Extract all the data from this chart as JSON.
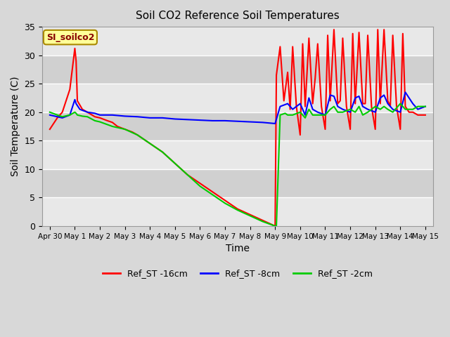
{
  "title": "Soil CO2 Reference Soil Temperatures",
  "xlabel": "Time",
  "ylabel": "Soil Temperature (C)",
  "ylim": [
    0,
    35
  ],
  "series": {
    "red": {
      "label": "Ref_ST -16cm",
      "color": "#ff0000",
      "x": [
        0,
        0.3,
        0.5,
        0.8,
        1.0,
        1.05,
        1.1,
        1.3,
        1.5,
        1.8,
        2.0,
        2.3,
        2.5,
        2.7,
        3.0,
        3.3,
        3.5,
        4.0,
        4.5,
        5.0,
        5.5,
        6.0,
        6.5,
        7.0,
        7.5,
        8.0,
        8.5,
        9.0,
        9.05,
        9.2,
        9.35,
        9.5,
        9.6,
        9.7,
        9.85,
        10.0,
        10.1,
        10.2,
        10.35,
        10.5,
        10.6,
        10.7,
        10.85,
        11.0,
        11.1,
        11.2,
        11.35,
        11.5,
        11.6,
        11.7,
        11.85,
        12.0,
        12.1,
        12.2,
        12.35,
        12.5,
        12.6,
        12.7,
        12.85,
        13.0,
        13.1,
        13.2,
        13.35,
        13.5,
        13.6,
        13.7,
        13.85,
        14.0,
        14.1,
        14.2,
        14.35,
        14.5,
        14.7,
        15.0
      ],
      "y": [
        17.0,
        19.0,
        20.0,
        24.0,
        31.2,
        29.0,
        22.0,
        20.5,
        20.0,
        19.2,
        19.0,
        18.5,
        18.2,
        17.5,
        17.0,
        16.5,
        16.0,
        14.5,
        13.0,
        11.0,
        9.0,
        7.5,
        6.0,
        4.5,
        3.0,
        2.0,
        1.0,
        0.0,
        26.5,
        31.5,
        22.0,
        27.0,
        20.5,
        31.5,
        21.0,
        16.0,
        32.0,
        21.0,
        33.0,
        21.5,
        26.0,
        32.0,
        21.0,
        17.0,
        33.5,
        22.0,
        34.5,
        21.5,
        22.0,
        33.0,
        21.0,
        17.0,
        33.8,
        21.5,
        34.0,
        21.5,
        21.5,
        33.5,
        21.0,
        17.0,
        34.5,
        21.5,
        34.5,
        22.0,
        21.0,
        33.5,
        21.0,
        17.0,
        33.8,
        21.0,
        20.0,
        20.0,
        19.5,
        19.5
      ]
    },
    "blue": {
      "label": "Ref_ST -8cm",
      "color": "#0000ff",
      "x": [
        0,
        0.3,
        0.5,
        0.8,
        1.0,
        1.05,
        1.2,
        1.5,
        1.8,
        2.0,
        2.5,
        3.0,
        3.5,
        4.0,
        4.5,
        5.0,
        5.5,
        6.0,
        6.5,
        7.0,
        7.5,
        8.0,
        8.5,
        9.0,
        9.2,
        9.5,
        9.7,
        10.0,
        10.2,
        10.35,
        10.5,
        10.7,
        11.0,
        11.2,
        11.35,
        11.5,
        11.7,
        12.0,
        12.2,
        12.35,
        12.5,
        12.7,
        13.0,
        13.2,
        13.35,
        13.5,
        13.7,
        14.0,
        14.2,
        14.5,
        14.7,
        15.0
      ],
      "y": [
        19.5,
        19.2,
        19.0,
        19.5,
        22.2,
        21.5,
        20.5,
        20.0,
        19.8,
        19.5,
        19.5,
        19.3,
        19.2,
        19.0,
        19.0,
        18.8,
        18.7,
        18.6,
        18.5,
        18.5,
        18.4,
        18.3,
        18.2,
        18.0,
        21.0,
        21.5,
        20.5,
        21.5,
        19.5,
        22.5,
        20.5,
        20.0,
        19.5,
        23.0,
        22.8,
        21.0,
        20.5,
        20.0,
        22.5,
        22.8,
        21.0,
        20.5,
        20.0,
        22.5,
        23.0,
        21.5,
        20.5,
        20.0,
        23.5,
        21.5,
        20.5,
        21.0
      ]
    },
    "green": {
      "label": "Ref_ST -2cm",
      "color": "#00cc00",
      "x": [
        0,
        0.3,
        0.5,
        0.8,
        1.0,
        1.05,
        1.1,
        1.3,
        1.5,
        1.8,
        2.0,
        2.5,
        3.0,
        3.5,
        4.0,
        4.5,
        5.0,
        5.5,
        6.0,
        6.5,
        7.0,
        7.5,
        8.0,
        8.5,
        9.0,
        9.05,
        9.2,
        9.4,
        9.5,
        9.7,
        10.0,
        10.2,
        10.35,
        10.5,
        10.7,
        11.0,
        11.2,
        11.35,
        11.5,
        11.7,
        12.0,
        12.2,
        12.35,
        12.5,
        12.7,
        13.0,
        13.2,
        13.35,
        13.5,
        13.7,
        14.0,
        14.2,
        14.5,
        14.7,
        15.0
      ],
      "y": [
        20.0,
        19.5,
        19.2,
        19.5,
        20.0,
        19.8,
        19.5,
        19.3,
        19.2,
        18.5,
        18.3,
        17.5,
        17.0,
        16.0,
        14.5,
        13.0,
        11.0,
        9.0,
        7.0,
        5.5,
        4.0,
        2.8,
        1.8,
        0.8,
        0.0,
        0.0,
        19.5,
        19.8,
        19.5,
        19.5,
        20.0,
        19.0,
        20.5,
        19.5,
        19.5,
        19.5,
        20.5,
        21.0,
        20.0,
        20.0,
        20.5,
        20.0,
        21.0,
        19.5,
        20.0,
        21.0,
        20.5,
        21.0,
        20.5,
        20.0,
        21.5,
        20.5,
        20.5,
        21.0,
        21.0
      ]
    }
  },
  "xticks": {
    "positions": [
      0,
      1,
      2,
      3,
      4,
      5,
      6,
      7,
      8,
      9,
      10,
      11,
      12,
      13,
      14,
      15
    ],
    "labels": [
      "Apr 30",
      "May 1",
      "May 2",
      "May 3",
      "May 4",
      "May 5",
      "May 6",
      "May 7",
      "May 8",
      "May 9",
      "May 10",
      "May 11",
      "May 12",
      "May 13",
      "May 14",
      "May 15"
    ]
  },
  "yticks": [
    0,
    5,
    10,
    15,
    20,
    25,
    30,
    35
  ],
  "fig_bg_color": "#d8d8d8",
  "plot_bg_light": "#e8e8e8",
  "plot_bg_dark": "#d0d0d0",
  "grid_color": "#ffffff",
  "annotation_text": "SI_soilco2",
  "annotation_bg": "#ffff99",
  "annotation_border": "#aa8800",
  "annotation_color": "#880000"
}
